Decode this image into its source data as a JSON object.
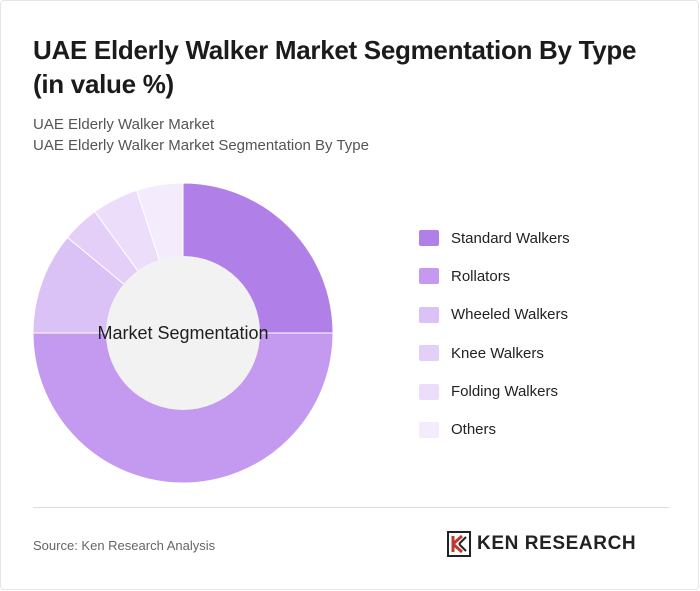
{
  "header": {
    "title": "UAE Elderly Walker Market Segmentation By Type (in value %)",
    "subtitle_line1": "UAE Elderly Walker Market",
    "subtitle_line2": "UAE Elderly Walker Market Segmentation By Type"
  },
  "chart_data": {
    "type": "pie",
    "variant": "donut",
    "center_label": "Market Segmentation",
    "legend_position": "right",
    "slices": [
      {
        "name": "Standard Walkers",
        "value": 25,
        "color": "#b07fe8"
      },
      {
        "name": "Rollators",
        "value": 50,
        "color": "#c49af0"
      },
      {
        "name": "Wheeled Walkers",
        "value": 11,
        "color": "#dbc2f6"
      },
      {
        "name": "Knee Walkers",
        "value": 4,
        "color": "#e3cff8"
      },
      {
        "name": "Folding Walkers",
        "value": 5,
        "color": "#ecdefa"
      },
      {
        "name": "Others",
        "value": 5,
        "color": "#f4ecfc"
      }
    ]
  },
  "footer": {
    "source": "Source: Ken Research Analysis",
    "logo_text": "KEN RESEARCH"
  }
}
